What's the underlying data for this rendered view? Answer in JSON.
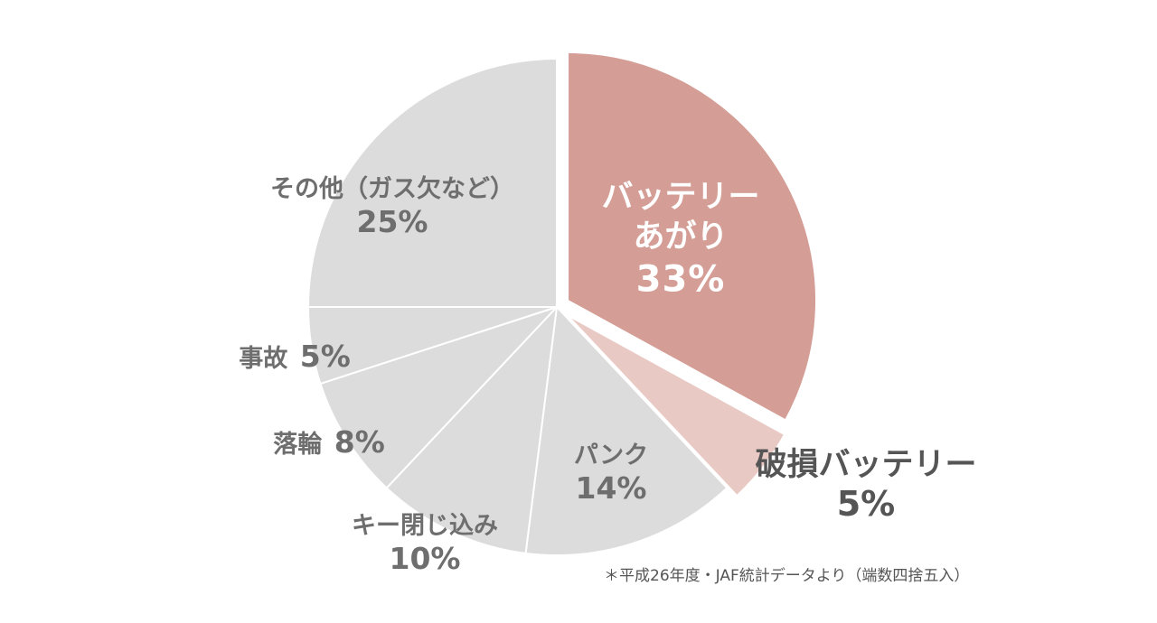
{
  "chart_data": {
    "type": "pie",
    "categories": [
      "バッテリーあがり",
      "破損バッテリー",
      "パンク",
      "キー閉じ込み",
      "落輪",
      "事故",
      "その他（ガス欠など）"
    ],
    "values": [
      33,
      5,
      14,
      10,
      8,
      5,
      25
    ],
    "value_labels": [
      "33%",
      "5%",
      "14%",
      "10%",
      "8%",
      "5%",
      "25%"
    ],
    "colors": [
      "#d49e96",
      "#e9c9c4",
      "#dcdcdc",
      "#dcdcdc",
      "#dcdcdc",
      "#dcdcdc",
      "#dcdcdc"
    ],
    "exploded": [
      0,
      1
    ],
    "start": "12 o'clock",
    "direction": "clockwise"
  },
  "labels": [
    {
      "name": "バッテリー\nあがり",
      "value": "33%"
    },
    {
      "name": "破損バッテリー",
      "value": "5%"
    },
    {
      "name": "パンク",
      "value": "14%"
    },
    {
      "name": "キー閉じ込み",
      "value": "10%"
    },
    {
      "name": "落輪",
      "value": "8%"
    },
    {
      "name": "事故",
      "value": "5%"
    },
    {
      "name": "その他（ガス欠など）",
      "value": "25%"
    }
  ],
  "footnote": "＊平成26年度・JAF統計データより（端数四捨五入）"
}
